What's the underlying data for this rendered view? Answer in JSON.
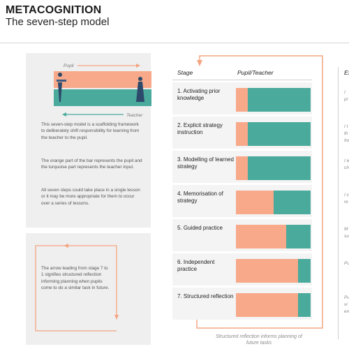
{
  "header": {
    "title": "METACOGNITION",
    "subtitle": "The seven-step model"
  },
  "left_panel": {
    "diagram": {
      "pupil_label": "Pupil",
      "teacher_label": "Teacher"
    },
    "paragraphs": [
      "This seven-step model is a scaffolding framework to deliberately shift responsibility for learning from the teacher to the pupil.",
      "The orange part of the bar represents the pupil and the turquoise part represents the teacher input.",
      "All seven steps could take place in a single lesson or it may be more appropriate for them to occur over a series of lessons."
    ]
  },
  "arrow_panel": {
    "text": "The arrow leading from stage 7 to 1 signifies structured reflection informing planning when pupils come to do a similar task in future."
  },
  "table": {
    "col_stage": "Stage",
    "col_pupil_teacher": "Pupil/Teacher",
    "col_example": "Ex",
    "stages": [
      {
        "label": "1. Activating prior knowledge",
        "pupil_share": 0.16
      },
      {
        "label": "2. Explicit strategy instruction",
        "pupil_share": 0.16
      },
      {
        "label": "3. Modelling of learned strategy",
        "pupil_share": 0.16
      },
      {
        "label": "4. Memorisation of strategy",
        "pupil_share": 0.5
      },
      {
        "label": "5. Guided practice",
        "pupil_share": 0.67
      },
      {
        "label": "6. Independent practice",
        "pupil_share": 0.83
      },
      {
        "label": "7. Structured reflection",
        "pupil_share": 0.83
      }
    ],
    "example_fragments": [
      "I\npr",
      "I t\nth\nho",
      "I w\nch",
      "I c\nre",
      "M\nsu",
      "Pu",
      "Pu\nvi\nen"
    ]
  },
  "footnote": "Structured reflection informs planning of future tasks",
  "colors": {
    "pupil": "#f7a98a",
    "teacher": "#4aaa9c",
    "arrow": "#f4a582"
  }
}
